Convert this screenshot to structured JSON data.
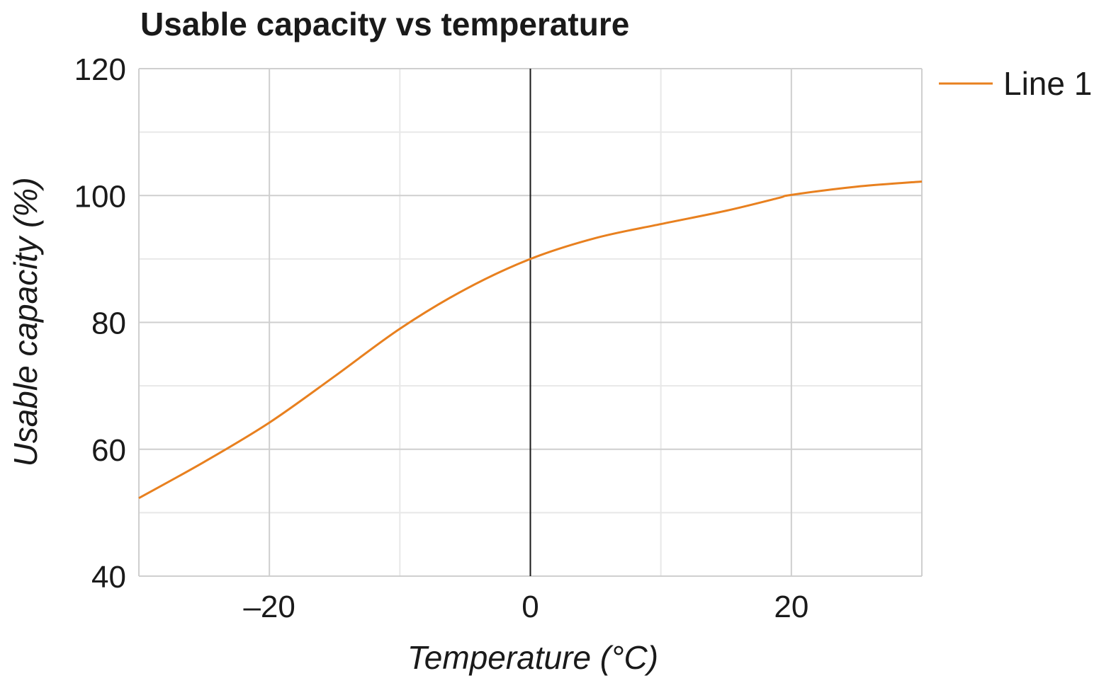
{
  "chart_data": {
    "type": "line",
    "title": "Usable capacity vs temperature",
    "xlabel": "Temperature (°C)",
    "ylabel": "Usable capacity (%)",
    "xlim": [
      -30,
      30
    ],
    "ylim": [
      40,
      120
    ],
    "x_ticks": [
      -20,
      0,
      20
    ],
    "x_tick_labels": [
      "–20",
      "0",
      "20"
    ],
    "x_minor_grid": [
      -10,
      10
    ],
    "y_ticks": [
      40,
      60,
      80,
      100,
      120
    ],
    "y_tick_labels": [
      "40",
      "60",
      "80",
      "100",
      "120"
    ],
    "y_minor_grid": [
      50,
      70,
      90,
      110
    ],
    "grid": true,
    "legend_position": "top-right-outside",
    "series": [
      {
        "name": "Line 1",
        "color": "#e8801f",
        "x": [
          -30,
          -25,
          -20,
          -15,
          -10,
          -5,
          0,
          5,
          10,
          15,
          19,
          20,
          25,
          30
        ],
        "y": [
          52.3,
          58.0,
          64.2,
          71.5,
          79.0,
          85.2,
          90.0,
          93.3,
          95.5,
          97.6,
          99.6,
          100.1,
          101.4,
          102.2
        ]
      }
    ]
  }
}
